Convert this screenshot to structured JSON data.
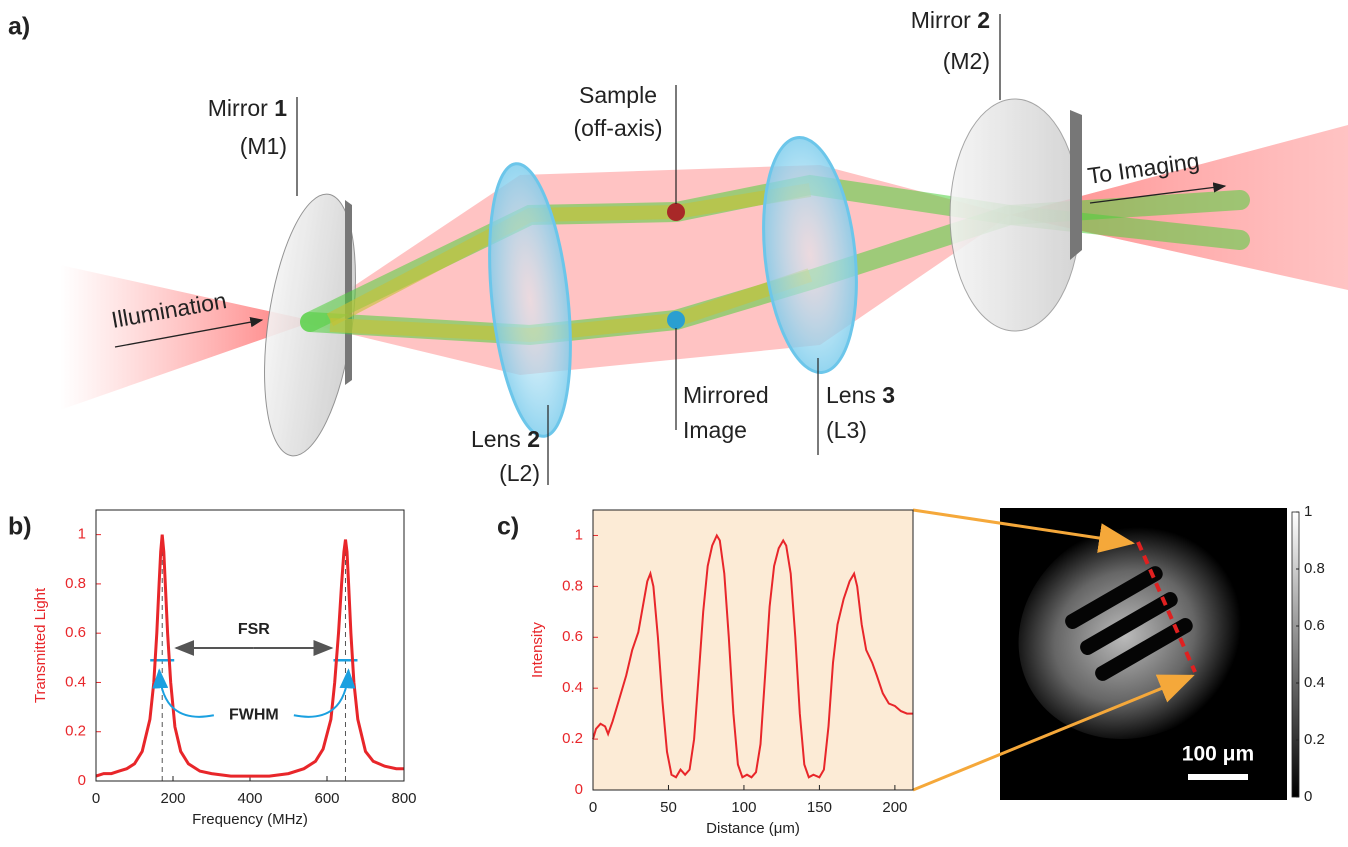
{
  "panel_labels": [
    "a)",
    "b)",
    "c)"
  ],
  "diagram": {
    "labels": [
      {
        "line1": "Mirror",
        "num": "1",
        "line2": "(M1)"
      },
      {
        "line1": "Sample",
        "line2": "(off-axis)"
      },
      {
        "line1": "Mirror",
        "num": "2",
        "line2": "(M2)"
      },
      {
        "line1": "Mirrored",
        "line2": "Image"
      },
      {
        "line1": "Lens",
        "num": "3",
        "line2": "(L3)"
      },
      {
        "line1": "Lens",
        "num": "2",
        "line2": "(L2)"
      }
    ],
    "illumination": "Illumination",
    "to_imaging": "To Imaging"
  },
  "chart_data": [
    {
      "type": "line",
      "xlabel": "Frequency (MHz)",
      "ylabel": "Transmitted Light",
      "color": "#e8262a",
      "xlim": [
        0,
        800
      ],
      "xticks": [
        0,
        200,
        400,
        600,
        800
      ],
      "ylim": [
        0,
        1.1
      ],
      "yticks": [
        0,
        0.2,
        0.4,
        0.6,
        0.8,
        1
      ],
      "x": [
        0,
        20,
        40,
        60,
        80,
        100,
        120,
        140,
        150,
        158,
        164,
        168,
        172,
        176,
        180,
        186,
        194,
        205,
        220,
        240,
        270,
        300,
        350,
        400,
        450,
        500,
        540,
        570,
        590,
        610,
        620,
        630,
        638,
        644,
        648,
        652,
        656,
        662,
        670,
        680,
        700,
        720,
        750,
        780,
        800
      ],
      "values": [
        0.02,
        0.03,
        0.03,
        0.04,
        0.05,
        0.07,
        0.12,
        0.25,
        0.4,
        0.6,
        0.8,
        0.93,
        1.0,
        0.93,
        0.8,
        0.6,
        0.4,
        0.22,
        0.12,
        0.07,
        0.04,
        0.03,
        0.02,
        0.02,
        0.02,
        0.03,
        0.05,
        0.08,
        0.13,
        0.25,
        0.4,
        0.6,
        0.8,
        0.93,
        0.98,
        0.93,
        0.8,
        0.6,
        0.4,
        0.25,
        0.12,
        0.08,
        0.06,
        0.05,
        0.05
      ],
      "peak_x": [
        172,
        648
      ],
      "half_max": 0.49,
      "annotations": [
        "FSR",
        "FWHM"
      ]
    },
    {
      "type": "line",
      "xlabel": "Distance (μm)",
      "ylabel": "Intensity",
      "color": "#e8262a",
      "background": "#fcebd6",
      "xlim": [
        0,
        212
      ],
      "xticks": [
        0,
        50,
        100,
        150,
        200
      ],
      "ylim": [
        0,
        1.1
      ],
      "yticks": [
        0,
        0.2,
        0.4,
        0.6,
        0.8,
        1
      ],
      "x": [
        0,
        2,
        5,
        8,
        10,
        13,
        17,
        22,
        26,
        30,
        33,
        36,
        38,
        40,
        43,
        46,
        49,
        52,
        55,
        58,
        61,
        64,
        67,
        70,
        73,
        76,
        79,
        82,
        84,
        87,
        90,
        93,
        96,
        99,
        102,
        105,
        108,
        111,
        114,
        117,
        120,
        123,
        126,
        128,
        131,
        134,
        137,
        140,
        143,
        146,
        150,
        153,
        156,
        159,
        162,
        166,
        170,
        173,
        175,
        178,
        181,
        185,
        188,
        192,
        196,
        200,
        204,
        208,
        212
      ],
      "values": [
        0.2,
        0.24,
        0.26,
        0.25,
        0.22,
        0.27,
        0.35,
        0.45,
        0.55,
        0.62,
        0.72,
        0.82,
        0.85,
        0.8,
        0.6,
        0.35,
        0.15,
        0.06,
        0.05,
        0.08,
        0.06,
        0.08,
        0.2,
        0.45,
        0.7,
        0.88,
        0.96,
        1.0,
        0.98,
        0.85,
        0.6,
        0.3,
        0.1,
        0.05,
        0.06,
        0.05,
        0.07,
        0.18,
        0.45,
        0.72,
        0.88,
        0.95,
        0.98,
        0.96,
        0.85,
        0.6,
        0.3,
        0.1,
        0.05,
        0.06,
        0.05,
        0.08,
        0.25,
        0.5,
        0.65,
        0.75,
        0.82,
        0.85,
        0.8,
        0.65,
        0.55,
        0.5,
        0.45,
        0.38,
        0.34,
        0.33,
        0.31,
        0.3,
        0.3
      ]
    }
  ],
  "image": {
    "scale_bar": "100 μm",
    "colorbar": {
      "ylim": [
        0,
        1
      ],
      "yticks": [
        0,
        0.2,
        0.4,
        0.6,
        0.8,
        1
      ]
    }
  }
}
